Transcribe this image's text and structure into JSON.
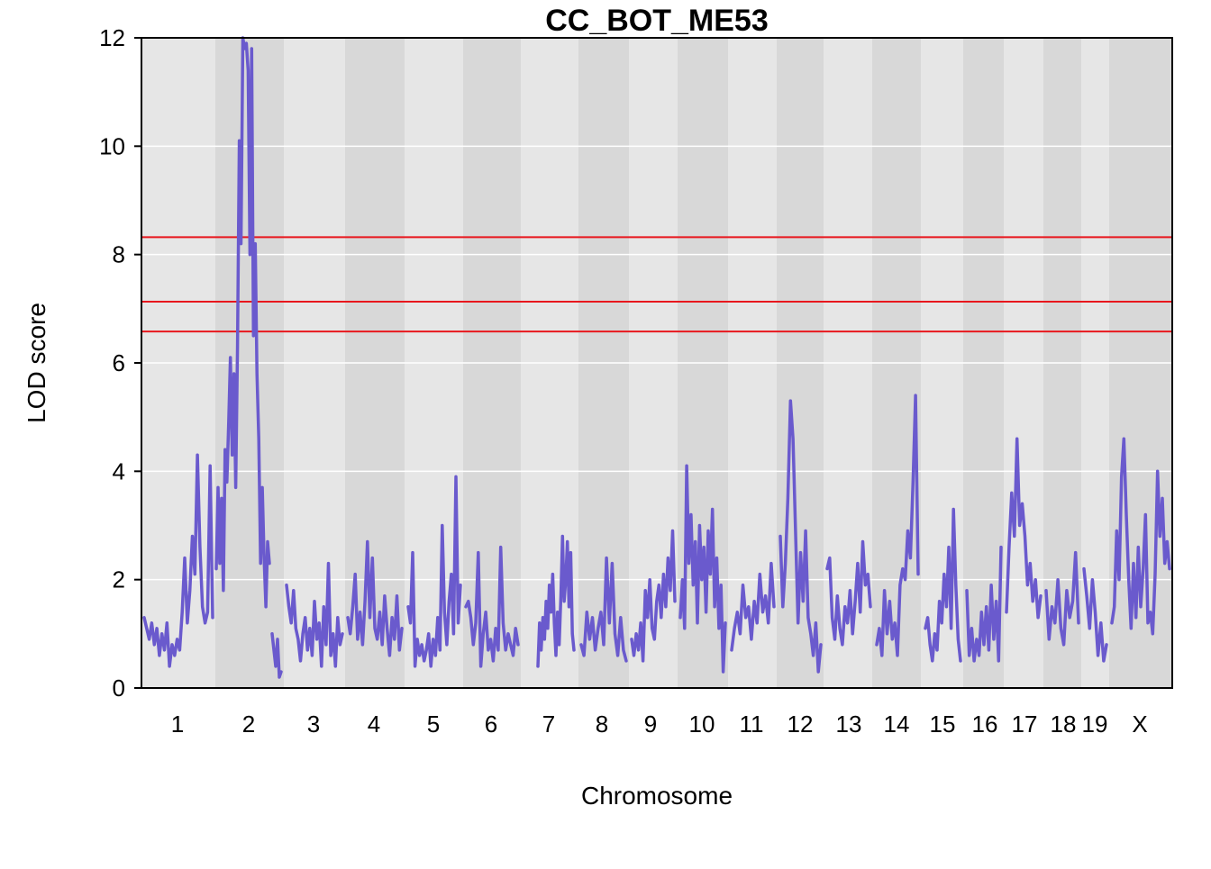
{
  "chart_data": {
    "type": "line",
    "title": "CC_BOT_ME53",
    "xlabel": "Chromosome",
    "ylabel": "LOD score",
    "ylim": [
      0,
      12
    ],
    "y_ticks": [
      "0",
      "2",
      "4",
      "6",
      "8",
      "10",
      "12"
    ],
    "grid": "horizontal",
    "chromosomes": [
      "1",
      "2",
      "3",
      "4",
      "5",
      "6",
      "7",
      "8",
      "9",
      "10",
      "11",
      "12",
      "13",
      "14",
      "15",
      "16",
      "17",
      "18",
      "19",
      "X"
    ],
    "thresholds": [
      8.32,
      7.13,
      6.58
    ],
    "series": [
      {
        "name": "",
        "color": "#6a5acd",
        "segments": [
          {
            "chr": "1",
            "lod": [
              1.3,
              1.1,
              0.9,
              1.2,
              0.8,
              1.1,
              0.6,
              1.0,
              0.7,
              1.2,
              0.4,
              0.8,
              0.6,
              0.9,
              0.7,
              1.4,
              2.4,
              1.2,
              1.8,
              2.8,
              2.1,
              4.3,
              2.6,
              1.5,
              1.2,
              1.4,
              4.1,
              1.3
            ]
          },
          {
            "chr": "2",
            "lod": [
              2.2,
              3.7,
              2.3,
              3.5,
              1.8,
              4.4,
              3.8,
              4.9,
              6.1,
              4.3,
              5.8,
              3.7,
              6.3,
              10.1,
              8.2,
              12.0,
              11.8,
              11.9,
              11.4,
              8.0,
              11.8,
              6.5,
              8.2,
              5.8,
              4.6,
              2.3,
              3.7,
              2.4,
              1.5,
              2.7,
              2.3
            ]
          },
          {
            "chr": "2b",
            "lod": [
              1.0,
              0.7,
              0.4,
              0.9,
              0.2,
              0.3
            ]
          },
          {
            "chr": "3",
            "lod": [
              1.9,
              1.5,
              1.2,
              1.8,
              1.1,
              0.9,
              0.5,
              1.0,
              1.3,
              0.7,
              1.1,
              0.6,
              1.6,
              0.9,
              1.2,
              0.4,
              1.5,
              0.8,
              2.3,
              0.6,
              1.0,
              0.4,
              1.3,
              0.8,
              1.0
            ]
          },
          {
            "chr": "4",
            "lod": [
              1.3,
              1.0,
              1.5,
              2.1,
              0.9,
              1.4,
              0.8,
              1.6,
              2.7,
              1.3,
              2.4,
              1.1,
              0.9,
              1.4,
              0.8,
              1.7,
              1.1,
              0.6,
              1.3,
              0.9,
              1.7,
              0.7,
              1.1
            ]
          },
          {
            "chr": "5",
            "lod": [
              1.5,
              1.2,
              2.5,
              0.4,
              0.9,
              0.6,
              0.8,
              0.5,
              0.7,
              1.0,
              0.4,
              0.9,
              0.6,
              1.3,
              0.7,
              3.0,
              1.4,
              0.8,
              1.6,
              2.1,
              1.0,
              3.9,
              1.2,
              1.9
            ]
          },
          {
            "chr": "6",
            "lod": [
              1.5,
              1.6,
              1.3,
              0.8,
              1.2,
              2.5,
              0.4,
              1.0,
              1.4,
              0.7,
              0.9,
              0.5,
              1.1,
              0.7,
              2.6,
              1.2,
              0.7,
              1.0,
              0.8,
              0.6,
              1.1,
              0.8
            ]
          },
          {
            "chr": "7",
            "lod": [
              0.4,
              1.2,
              0.7,
              1.3,
              0.9,
              1.6,
              1.1,
              1.9,
              1.4,
              2.1,
              1.2,
              0.6,
              1.4,
              0.8,
              1.7,
              2.8,
              1.6,
              2.0,
              2.7,
              1.5,
              2.5,
              1.0,
              0.7
            ]
          },
          {
            "chr": "8",
            "lod": [
              0.8,
              0.6,
              1.4,
              0.9,
              1.3,
              0.7,
              1.1,
              1.4,
              0.8,
              2.4,
              1.2,
              2.3,
              1.0,
              0.6,
              1.3,
              0.7,
              0.5
            ]
          },
          {
            "chr": "9",
            "lod": [
              0.9,
              0.6,
              1.0,
              0.7,
              1.2,
              0.5,
              1.8,
              1.3,
              2.0,
              1.1,
              0.9,
              1.6,
              1.9,
              1.3,
              2.1,
              1.5,
              2.4,
              1.8,
              2.9,
              1.6
            ]
          },
          {
            "chr": "10",
            "lod": [
              1.3,
              2.0,
              1.1,
              4.1,
              2.3,
              3.2,
              1.9,
              2.7,
              1.2,
              3.0,
              2.0,
              2.6,
              1.4,
              2.9,
              2.1,
              3.3,
              1.5,
              2.4,
              1.1,
              1.9,
              0.3,
              1.2
            ]
          },
          {
            "chr": "11",
            "lod": [
              0.7,
              1.1,
              1.4,
              1.0,
              1.9,
              1.3,
              1.5,
              0.9,
              1.6,
              1.2,
              2.1,
              1.4,
              1.7,
              1.2,
              2.3,
              1.5
            ]
          },
          {
            "chr": "12",
            "lod": [
              2.8,
              1.5,
              2.3,
              3.5,
              5.3,
              4.6,
              2.9,
              1.2,
              2.5,
              1.6,
              2.9,
              1.3,
              1.0,
              0.6,
              1.2,
              0.3,
              0.8
            ]
          },
          {
            "chr": "13",
            "lod": [
              2.2,
              2.4,
              1.3,
              0.9,
              1.7,
              1.1,
              0.8,
              1.5,
              1.2,
              1.8,
              1.0,
              1.6,
              2.3,
              1.4,
              2.7,
              1.9,
              2.1,
              1.5
            ]
          },
          {
            "chr": "14",
            "lod": [
              0.8,
              1.1,
              0.6,
              1.8,
              1.0,
              1.6,
              0.9,
              1.2,
              0.6,
              1.9,
              2.2,
              2.0,
              2.9,
              2.4,
              3.8,
              5.4,
              2.1
            ]
          },
          {
            "chr": "15",
            "lod": [
              1.1,
              1.3,
              0.8,
              0.5,
              1.0,
              0.7,
              1.6,
              1.2,
              2.1,
              1.5,
              2.6,
              1.1,
              3.3,
              1.9,
              0.9,
              0.5
            ]
          },
          {
            "chr": "16",
            "lod": [
              1.8,
              0.6,
              1.1,
              0.5,
              0.9,
              0.6,
              1.4,
              0.8,
              1.5,
              0.7,
              1.9,
              0.9,
              1.6,
              0.5,
              2.6
            ]
          },
          {
            "chr": "17",
            "lod": [
              1.4,
              2.6,
              3.6,
              2.8,
              4.6,
              3.0,
              3.4,
              2.8,
              1.9,
              2.3,
              1.6,
              2.0,
              1.3,
              1.7
            ]
          },
          {
            "chr": "18",
            "lod": [
              1.8,
              0.9,
              1.5,
              1.2,
              2.0,
              1.1,
              0.8,
              1.8,
              1.3,
              1.6,
              2.5,
              1.2
            ]
          },
          {
            "chr": "19",
            "lod": [
              2.2,
              1.7,
              1.1,
              2.0,
              1.4,
              0.6,
              1.2,
              0.5,
              0.8
            ]
          },
          {
            "chr": "X",
            "lod": [
              1.2,
              1.5,
              2.9,
              2.0,
              3.9,
              4.6,
              3.2,
              2.0,
              1.1,
              2.3,
              1.3,
              2.6,
              1.5,
              2.2,
              3.2,
              1.2,
              1.4,
              1.0,
              2.1,
              4.0,
              2.8,
              3.5,
              2.3,
              2.7,
              2.2
            ]
          }
        ]
      }
    ]
  }
}
